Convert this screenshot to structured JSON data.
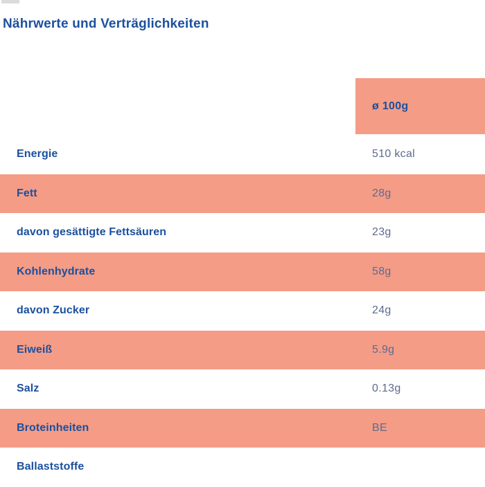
{
  "page": {
    "title": "Nährwerte und Verträglichkeiten"
  },
  "table": {
    "column_header": "ø 100g",
    "rows": [
      {
        "label": "Energie",
        "value": "510 kcal"
      },
      {
        "label": "Fett",
        "value": "28g"
      },
      {
        "label": "davon gesättigte Fettsäuren",
        "value": "23g"
      },
      {
        "label": "Kohlenhydrate",
        "value": "58g"
      },
      {
        "label": "davon Zucker",
        "value": "24g"
      },
      {
        "label": "Eiweiß",
        "value": "5.9g"
      },
      {
        "label": "Salz",
        "value": "0.13g"
      },
      {
        "label": "Broteinheiten",
        "value": "BE"
      },
      {
        "label": "Ballaststoffe",
        "value": ""
      }
    ]
  },
  "colors": {
    "highlight_salmon": "#F49C86",
    "heading_blue": "#1B509E",
    "value_slate": "#5E6A8E"
  }
}
